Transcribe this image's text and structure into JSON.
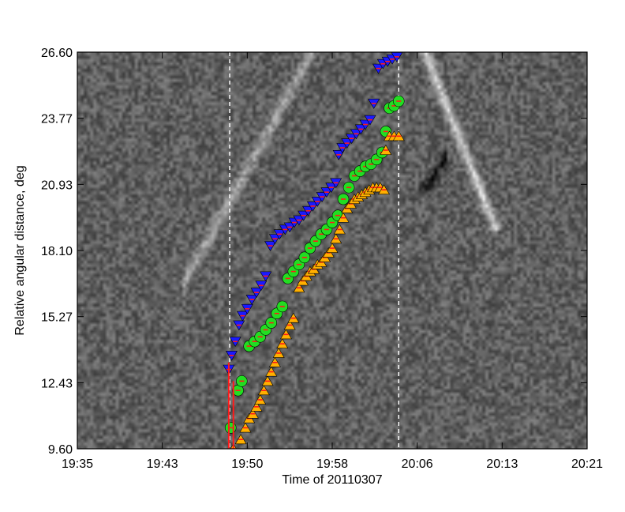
{
  "chart_data": {
    "type": "scatter",
    "title": "",
    "xlabel": "Time of 20110307",
    "ylabel": "Relative angular distance, deg",
    "x_tick_labels": [
      "19:35",
      "19:43",
      "19:50",
      "19:58",
      "20:06",
      "20:13",
      "20:21"
    ],
    "y_tick_labels": [
      "9.60",
      "12.43",
      "15.27",
      "18.10",
      "20.93",
      "23.77",
      "26.60"
    ],
    "xlim": [
      "19:35",
      "20:21"
    ],
    "ylim": [
      9.6,
      26.6
    ],
    "background": "grayscale running-difference J-map image",
    "vertical_dashed_lines": [
      "19:48:45",
      "20:04:00"
    ],
    "series": [
      {
        "marker": "down-triangle",
        "color": "#1a1aff",
        "error_color": "#ff1a1a",
        "points": [
          [
            "19:48:40",
            13.0
          ],
          [
            "19:48:55",
            13.6
          ],
          [
            "19:49:15",
            14.2
          ],
          [
            "19:49:35",
            14.9
          ],
          [
            "19:49:55",
            15.3
          ],
          [
            "19:50:20",
            15.6
          ],
          [
            "19:50:45",
            16.0
          ],
          [
            "19:51:10",
            16.3
          ],
          [
            "19:51:35",
            16.6
          ],
          [
            "19:52:00",
            17.0
          ],
          [
            "19:52:25",
            18.3
          ],
          [
            "19:52:50",
            18.6
          ],
          [
            "19:53:15",
            18.8
          ],
          [
            "19:53:45",
            19.0
          ],
          [
            "19:54:10",
            19.1
          ],
          [
            "19:54:35",
            19.3
          ],
          [
            "19:55:00",
            19.4
          ],
          [
            "19:55:25",
            19.6
          ],
          [
            "19:55:50",
            19.8
          ],
          [
            "19:56:15",
            20.0
          ],
          [
            "19:56:40",
            20.2
          ],
          [
            "19:57:05",
            20.4
          ],
          [
            "19:57:30",
            20.6
          ],
          [
            "19:57:55",
            20.8
          ],
          [
            "19:58:20",
            21.0
          ],
          [
            "19:58:35",
            22.2
          ],
          [
            "19:58:55",
            22.5
          ],
          [
            "19:59:20",
            22.7
          ],
          [
            "19:59:45",
            22.9
          ],
          [
            "20:00:10",
            23.1
          ],
          [
            "20:00:35",
            23.3
          ],
          [
            "20:01:00",
            23.5
          ],
          [
            "20:01:25",
            23.7
          ],
          [
            "20:01:45",
            24.4
          ],
          [
            "20:02:10",
            25.9
          ],
          [
            "20:02:35",
            26.1
          ],
          [
            "20:03:00",
            26.2
          ],
          [
            "20:03:25",
            26.3
          ],
          [
            "20:03:50",
            26.4
          ]
        ]
      },
      {
        "marker": "circle",
        "color": "#22dd22",
        "error_color": "#ff1a1a",
        "points": [
          [
            "19:48:50",
            10.5
          ],
          [
            "19:49:30",
            12.1
          ],
          [
            "19:49:50",
            12.5
          ],
          [
            "19:50:30",
            14.0
          ],
          [
            "19:51:00",
            14.2
          ],
          [
            "19:51:30",
            14.4
          ],
          [
            "19:52:00",
            14.7
          ],
          [
            "19:52:30",
            15.0
          ],
          [
            "19:53:00",
            15.4
          ],
          [
            "19:53:30",
            15.7
          ],
          [
            "19:54:00",
            16.9
          ],
          [
            "19:54:30",
            17.2
          ],
          [
            "19:55:00",
            17.5
          ],
          [
            "19:55:30",
            17.8
          ],
          [
            "19:56:00",
            18.2
          ],
          [
            "19:56:30",
            18.5
          ],
          [
            "19:57:00",
            18.8
          ],
          [
            "19:57:30",
            19.0
          ],
          [
            "19:58:00",
            19.3
          ],
          [
            "19:58:30",
            19.6
          ],
          [
            "19:59:00",
            20.3
          ],
          [
            "19:59:30",
            20.8
          ],
          [
            "20:00:00",
            21.3
          ],
          [
            "20:00:30",
            21.5
          ],
          [
            "20:01:00",
            21.7
          ],
          [
            "20:01:30",
            21.8
          ],
          [
            "20:02:00",
            22.0
          ],
          [
            "20:02:30",
            22.3
          ],
          [
            "20:02:50",
            23.2
          ],
          [
            "20:03:10",
            24.2
          ],
          [
            "20:03:35",
            24.3
          ],
          [
            "20:04:00",
            24.5
          ]
        ]
      },
      {
        "marker": "up-triangle",
        "color": "#ffb000",
        "error_color": "#ff1a1a",
        "points": [
          [
            "19:49:05",
            9.6
          ],
          [
            "19:49:45",
            10.0
          ],
          [
            "19:50:10",
            10.5
          ],
          [
            "19:50:30",
            10.9
          ],
          [
            "19:50:50",
            11.1
          ],
          [
            "19:51:10",
            11.4
          ],
          [
            "19:51:30",
            11.7
          ],
          [
            "19:51:50",
            12.1
          ],
          [
            "19:52:10",
            12.5
          ],
          [
            "19:52:30",
            12.9
          ],
          [
            "19:52:50",
            13.3
          ],
          [
            "19:53:10",
            13.7
          ],
          [
            "19:53:30",
            14.1
          ],
          [
            "19:53:50",
            14.5
          ],
          [
            "19:54:10",
            14.9
          ],
          [
            "19:54:30",
            15.2
          ],
          [
            "19:55:00",
            16.5
          ],
          [
            "19:55:20",
            16.8
          ],
          [
            "19:55:40",
            17.0
          ],
          [
            "19:56:00",
            17.2
          ],
          [
            "19:56:20",
            17.3
          ],
          [
            "19:56:40",
            17.5
          ],
          [
            "19:57:00",
            17.6
          ],
          [
            "19:57:20",
            17.8
          ],
          [
            "19:57:40",
            18.0
          ],
          [
            "19:58:00",
            18.2
          ],
          [
            "19:58:20",
            18.6
          ],
          [
            "19:58:40",
            19.0
          ],
          [
            "19:59:00",
            19.5
          ],
          [
            "19:59:20",
            19.9
          ],
          [
            "19:59:40",
            20.1
          ],
          [
            "20:00:00",
            20.3
          ],
          [
            "20:00:20",
            20.4
          ],
          [
            "20:00:40",
            20.5
          ],
          [
            "20:01:00",
            20.6
          ],
          [
            "20:01:20",
            20.7
          ],
          [
            "20:01:40",
            20.8
          ],
          [
            "20:02:00",
            20.8
          ],
          [
            "20:02:20",
            20.8
          ],
          [
            "20:02:40",
            20.7
          ],
          [
            "20:02:50",
            22.4
          ],
          [
            "20:03:10",
            23.0
          ],
          [
            "20:03:35",
            23.0
          ],
          [
            "20:04:00",
            23.0
          ]
        ]
      }
    ]
  }
}
